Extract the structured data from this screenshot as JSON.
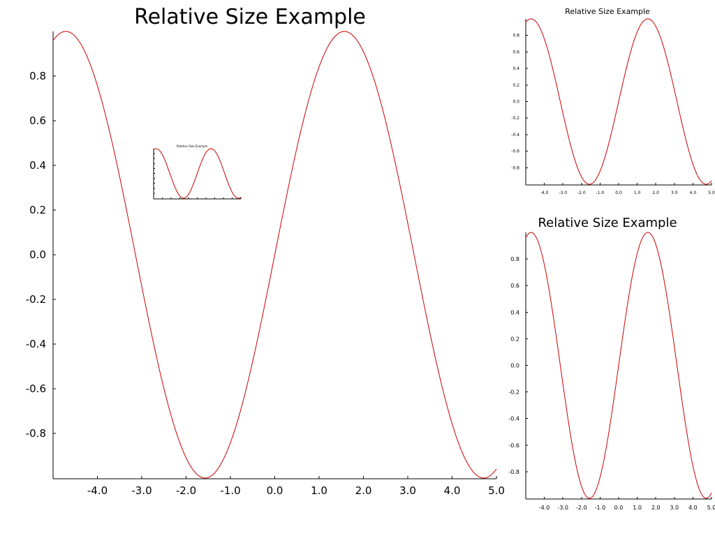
{
  "chart_data": [
    {
      "id": "main",
      "type": "line",
      "title": "Relative Size Example",
      "function": "sin(x)",
      "xlim": [
        -5.0,
        5.0
      ],
      "ylim": [
        -1.0,
        1.0
      ],
      "x_ticks": [
        -4.0,
        -3.0,
        -2.0,
        -1.0,
        0.0,
        1.0,
        2.0,
        3.0,
        4.0,
        5.0
      ],
      "x_tick_labels": [
        "-4.0",
        "-3.0",
        "-2.0",
        "-1.0",
        "0.0",
        "1.0",
        "2.0",
        "3.0",
        "4.0",
        "5.0"
      ],
      "y_ticks": [
        -0.8,
        -0.6,
        -0.4,
        -0.2,
        0.0,
        0.2,
        0.4,
        0.6,
        0.8
      ],
      "y_tick_labels": [
        "-0.8",
        "-0.6",
        "-0.4",
        "-0.2",
        "0.0",
        "0.2",
        "0.4",
        "0.6",
        "0.8"
      ],
      "grid": false,
      "series": [
        {
          "color": "#cc0000"
        }
      ]
    },
    {
      "id": "inset",
      "type": "line",
      "title": "Relative Size Example",
      "function": "sin(x)",
      "xlim": [
        -5.0,
        5.0
      ],
      "ylim": [
        -1.0,
        1.0
      ],
      "x_ticks": [
        -4.0,
        -3.0,
        -2.0,
        -1.0,
        0.0,
        1.0,
        2.0,
        3.0,
        4.0,
        5.0
      ],
      "x_tick_labels": [
        "",
        "",
        "",
        "",
        "",
        "",
        "",
        "",
        "",
        ""
      ],
      "y_ticks": [
        -0.8,
        -0.6,
        -0.4,
        -0.2,
        0.0,
        0.2,
        0.4,
        0.6,
        0.8
      ],
      "y_tick_labels": [
        "",
        "",
        "",
        "",
        "",
        "",
        "",
        "",
        ""
      ],
      "grid": false,
      "series": [
        {
          "color": "#cc0000"
        }
      ]
    },
    {
      "id": "top-right",
      "type": "line",
      "title": "Relative Size Example",
      "function": "sin(x)",
      "xlim": [
        -5.0,
        5.0
      ],
      "ylim": [
        -1.0,
        1.0
      ],
      "x_ticks": [
        -4.0,
        -3.0,
        -2.0,
        -1.0,
        0.0,
        1.0,
        2.0,
        3.0,
        4.0,
        5.0
      ],
      "x_tick_labels": [
        "-4.0",
        "-3.0",
        "-2.0",
        "-1.0",
        "0.0",
        "1.0",
        "2.0",
        "3.0",
        "4.0",
        "5.0"
      ],
      "y_ticks": [
        -0.8,
        -0.6,
        -0.4,
        -0.2,
        0.0,
        0.2,
        0.4,
        0.6,
        0.8
      ],
      "y_tick_labels": [
        "-0.8",
        "-0.6",
        "-0.4",
        "-0.2",
        "0.0",
        "0.2",
        "0.4",
        "0.6",
        "0.8"
      ],
      "grid": false,
      "series": [
        {
          "color": "#cc0000"
        }
      ]
    },
    {
      "id": "bottom-right",
      "type": "line",
      "title": "Relative Size Example",
      "function": "sin(x)",
      "xlim": [
        -5.0,
        5.0
      ],
      "ylim": [
        -1.0,
        1.0
      ],
      "x_ticks": [
        -4.0,
        -3.0,
        -2.0,
        -1.0,
        0.0,
        1.0,
        2.0,
        3.0,
        4.0,
        5.0
      ],
      "x_tick_labels": [
        "-4.0",
        "-3.0",
        "-2.0",
        "-1.0",
        "0.0",
        "1.0",
        "2.0",
        "3.0",
        "4.0",
        "5.0"
      ],
      "y_ticks": [
        -0.8,
        -0.6,
        -0.4,
        -0.2,
        0.0,
        0.2,
        0.4,
        0.6,
        0.8
      ],
      "y_tick_labels": [
        "-0.8",
        "-0.6",
        "-0.4",
        "-0.2",
        "0.0",
        "0.2",
        "0.4",
        "0.6",
        "0.8"
      ],
      "grid": false,
      "series": [
        {
          "color": "#cc0000"
        }
      ]
    }
  ]
}
